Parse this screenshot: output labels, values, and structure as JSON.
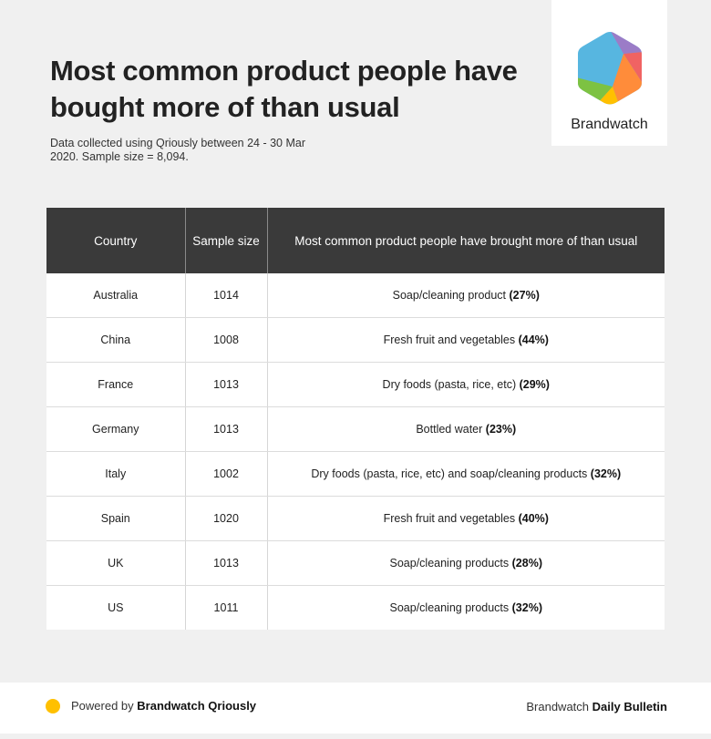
{
  "header": {
    "title": "Most common product people have bought more of than usual",
    "subtitle": "Data collected using Qriously between 24 - 30 Mar 2020. Sample size = 8,094.",
    "logo_name": "Brandwatch"
  },
  "chart_data": {
    "type": "table",
    "columns": [
      "Country",
      "Sample size",
      "Most common product people have brought more of than usual"
    ],
    "rows": [
      {
        "country": "Australia",
        "sample": "1014",
        "product": "Soap/cleaning product",
        "pct": "(27%)"
      },
      {
        "country": "China",
        "sample": "1008",
        "product": "Fresh fruit and vegetables",
        "pct": "(44%)"
      },
      {
        "country": "France",
        "sample": "1013",
        "product": "Dry foods (pasta, rice, etc)",
        "pct": "(29%)"
      },
      {
        "country": "Germany",
        "sample": "1013",
        "product": "Bottled water",
        "pct": "(23%)"
      },
      {
        "country": "Italy",
        "sample": "1002",
        "product": "Dry foods (pasta, rice, etc) and soap/cleaning products",
        "pct": "(32%)"
      },
      {
        "country": "Spain",
        "sample": "1020",
        "product": "Fresh fruit and vegetables",
        "pct": "(40%)"
      },
      {
        "country": "UK",
        "sample": "1013",
        "product": "Soap/cleaning products",
        "pct": "(28%)"
      },
      {
        "country": "US",
        "sample": "1011",
        "product": "Soap/cleaning products",
        "pct": "(32%)"
      }
    ]
  },
  "footer": {
    "powered_prefix": "Powered by",
    "powered_brand": "Brandwatch Qriously",
    "bulletin_prefix": "Brandwatch",
    "bulletin_name": "Daily Bulletin"
  },
  "colors": {
    "header_bg": "#3a3a3a",
    "page_bg": "#f0f0f0",
    "accent_dot": "#ffc000",
    "logo_colors": [
      "#57b6e0",
      "#9b7cc7",
      "#f06363",
      "#ff8c3a",
      "#ffc000",
      "#7dc242"
    ]
  }
}
